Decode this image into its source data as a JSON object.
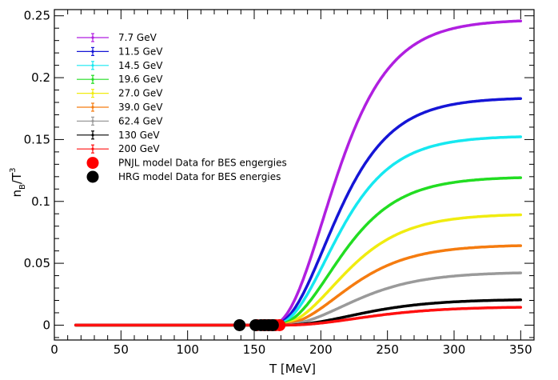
{
  "chart_data": {
    "type": "line",
    "xlabel": "T [MeV]",
    "ylabel": {
      "base": "n",
      "sub": "B",
      "sep": "/T",
      "sup": "3"
    },
    "xlim": [
      0,
      360
    ],
    "ylim": [
      -0.012,
      0.255
    ],
    "xticks": [
      0,
      50,
      100,
      150,
      200,
      250,
      300,
      350
    ],
    "xtick_labels": [
      "0",
      "50",
      "100",
      "150",
      "200",
      "250",
      "300",
      "350"
    ],
    "yticks": [
      0,
      0.05,
      0.1,
      0.15,
      0.2,
      0.25
    ],
    "ytick_labels": [
      "0",
      "0.05",
      "0.1",
      "0.15",
      "0.2",
      "0.25"
    ],
    "grid": false,
    "legend_position": "top-left",
    "x_start": 16,
    "x_end": 350,
    "series": [
      {
        "name": "7.7 GeV",
        "color": "#b01fe0",
        "onset": 162,
        "width": 25,
        "plateau": 0.247,
        "x": [
          170,
          180,
          190,
          200,
          225,
          250,
          275,
          300,
          325,
          350
        ],
        "y": [
          0.006,
          0.03,
          0.064,
          0.1,
          0.18,
          0.221,
          0.238,
          0.244,
          0.246,
          0.247
        ]
      },
      {
        "name": "11.5 GeV",
        "color": "#1515d6",
        "onset": 163,
        "width": 25,
        "plateau": 0.184,
        "x": [
          170,
          180,
          190,
          200,
          225,
          250,
          275,
          300,
          325,
          350
        ],
        "y": [
          0.004,
          0.02,
          0.045,
          0.072,
          0.133,
          0.164,
          0.177,
          0.182,
          0.183,
          0.184
        ]
      },
      {
        "name": "14.5 GeV",
        "color": "#16e8f0",
        "onset": 164,
        "width": 25,
        "plateau": 0.153,
        "x": [
          170,
          180,
          190,
          200,
          225,
          250,
          275,
          300,
          325,
          350
        ],
        "y": [
          0.003,
          0.016,
          0.036,
          0.058,
          0.109,
          0.136,
          0.147,
          0.151,
          0.152,
          0.153
        ]
      },
      {
        "name": "19.6 GeV",
        "color": "#22dd22",
        "onset": 165,
        "width": 26,
        "plateau": 0.12,
        "x": [
          170,
          180,
          190,
          200,
          225,
          250,
          275,
          300,
          325,
          350
        ],
        "y": [
          0.002,
          0.011,
          0.026,
          0.043,
          0.083,
          0.106,
          0.115,
          0.118,
          0.119,
          0.12
        ]
      },
      {
        "name": "27.0 GeV",
        "color": "#f0ec10",
        "onset": 166,
        "width": 27,
        "plateau": 0.09,
        "x": [
          170,
          180,
          190,
          200,
          225,
          250,
          275,
          300,
          325,
          350
        ],
        "y": [
          0.001,
          0.007,
          0.018,
          0.03,
          0.061,
          0.079,
          0.086,
          0.089,
          0.09,
          0.09
        ]
      },
      {
        "name": "39.0 GeV",
        "color": "#f57c10",
        "onset": 167,
        "width": 28,
        "plateau": 0.065,
        "x": [
          170,
          180,
          190,
          200,
          225,
          250,
          275,
          300,
          325,
          350
        ],
        "y": [
          0.001,
          0.005,
          0.012,
          0.021,
          0.043,
          0.056,
          0.062,
          0.064,
          0.065,
          0.065
        ]
      },
      {
        "name": "62.4 GeV",
        "color": "#9a9a9a",
        "onset": 168,
        "width": 30,
        "plateau": 0.043,
        "x": [
          170,
          180,
          190,
          200,
          225,
          250,
          275,
          300,
          325,
          350
        ],
        "y": [
          0.0,
          0.003,
          0.007,
          0.012,
          0.027,
          0.036,
          0.04,
          0.042,
          0.043,
          0.043
        ]
      },
      {
        "name": "130 GeV",
        "color": "#000000",
        "onset": 170,
        "width": 32,
        "plateau": 0.021,
        "x": [
          170,
          180,
          190,
          200,
          225,
          250,
          275,
          300,
          325,
          350
        ],
        "y": [
          0.0,
          0.001,
          0.003,
          0.006,
          0.012,
          0.017,
          0.019,
          0.02,
          0.021,
          0.021
        ]
      },
      {
        "name": "200 GeV",
        "color": "#ff1010",
        "onset": 171,
        "width": 34,
        "plateau": 0.015,
        "x": [
          170,
          180,
          190,
          200,
          225,
          250,
          275,
          300,
          325,
          350
        ],
        "y": [
          0.0,
          0.001,
          0.002,
          0.004,
          0.009,
          0.012,
          0.014,
          0.015,
          0.015,
          0.015
        ]
      }
    ],
    "marker_series": [
      {
        "name": "PNJL model Data for BES engergies",
        "color": "#ff0000",
        "points": [
          {
            "x": 152,
            "y": 0
          },
          {
            "x": 157,
            "y": 0
          },
          {
            "x": 160,
            "y": 0
          },
          {
            "x": 163,
            "y": 0
          },
          {
            "x": 166,
            "y": 0
          },
          {
            "x": 169,
            "y": 0
          }
        ]
      },
      {
        "name": "HRG model Data for BES energies",
        "color": "#000000",
        "points": [
          {
            "x": 139,
            "y": 0
          },
          {
            "x": 151,
            "y": 0
          },
          {
            "x": 155,
            "y": 0
          },
          {
            "x": 158,
            "y": 0
          },
          {
            "x": 161,
            "y": 0
          },
          {
            "x": 164,
            "y": 0
          }
        ]
      }
    ]
  }
}
